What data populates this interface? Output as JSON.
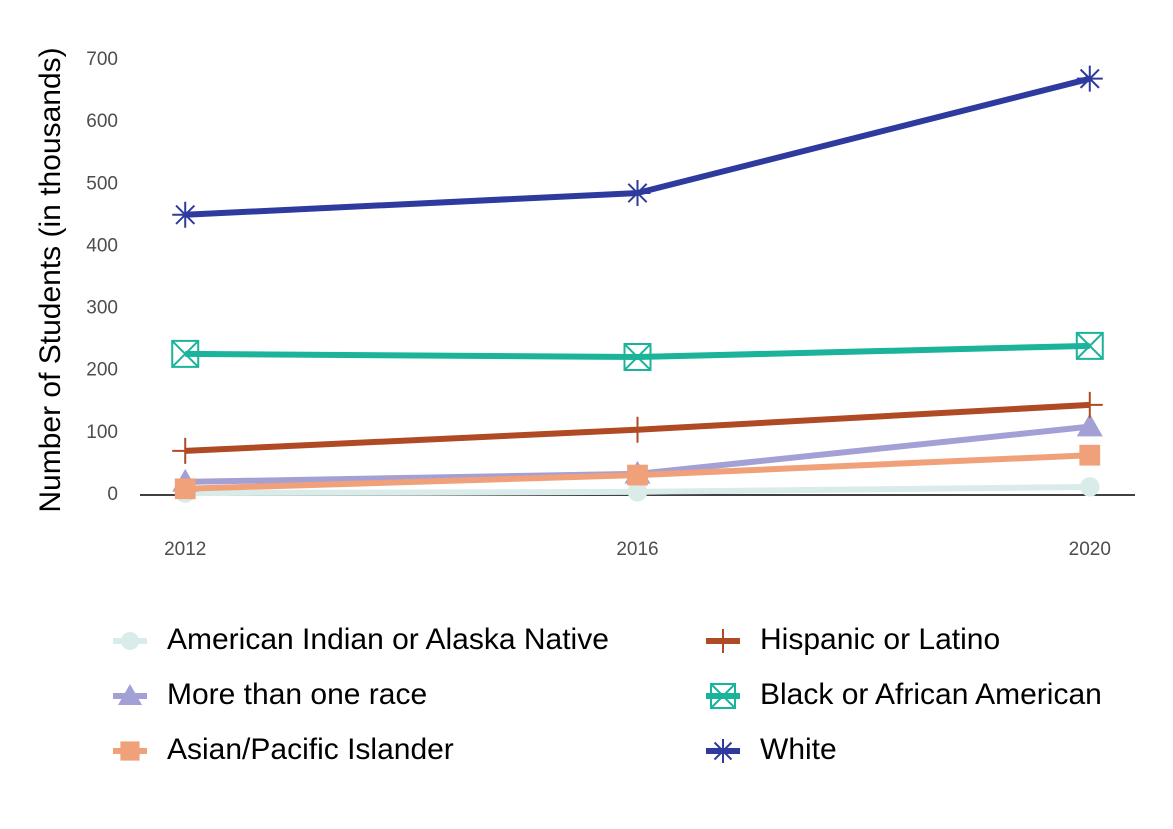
{
  "chart_data": {
    "type": "line",
    "y_label": "Number of Students (in thousands)",
    "x": [
      2012,
      2016,
      2020
    ],
    "xlim": [
      2011.6,
      2020.4
    ],
    "xticks": [
      2012,
      2016,
      2020
    ],
    "ylim": [
      -15,
      730
    ],
    "yticks": [
      0,
      100,
      200,
      300,
      400,
      500,
      600,
      700
    ],
    "grid": false,
    "legend": "bottom",
    "series": [
      {
        "name": "American Indian or Alaska Native",
        "color": "#d9ecea",
        "marker": "circle",
        "values": [
          3,
          5,
          13
        ]
      },
      {
        "name": "More than one race",
        "color": "#a3a0d6",
        "marker": "triangle",
        "values": [
          21,
          34,
          110
        ]
      },
      {
        "name": "Asian/Pacific Islander",
        "color": "#f0a17a",
        "marker": "square",
        "values": [
          10,
          32,
          64
        ]
      },
      {
        "name": "Hispanic or Latino",
        "color": "#b04a24",
        "marker": "plus",
        "values": [
          71,
          105,
          145
        ]
      },
      {
        "name": "Black or African American",
        "color": "#1bb39a",
        "marker": "boxcross",
        "values": [
          227,
          222,
          240
        ]
      },
      {
        "name": "White",
        "color": "#2e3a9e",
        "marker": "asterisk",
        "values": [
          451,
          486,
          670
        ]
      }
    ]
  }
}
